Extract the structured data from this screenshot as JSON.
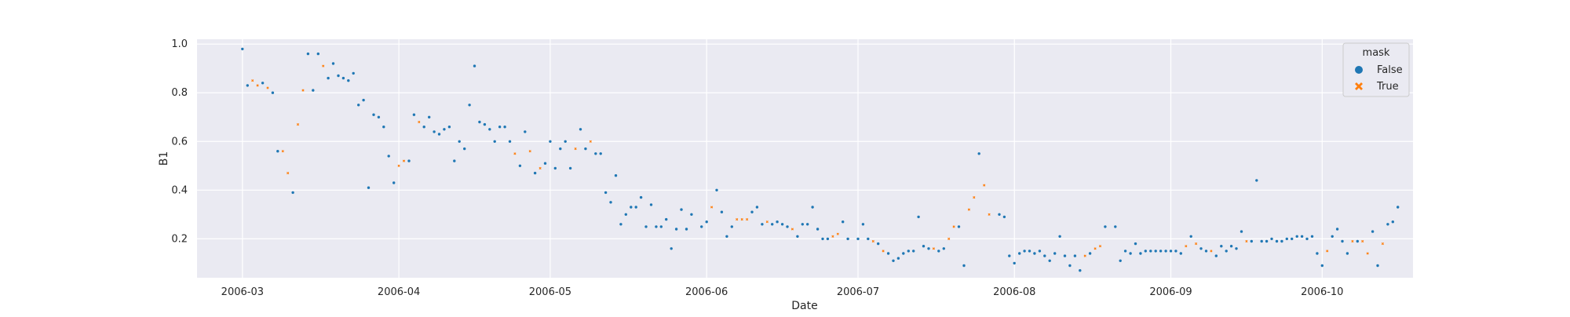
{
  "chart_data": {
    "type": "scatter",
    "xlabel": "Date",
    "ylabel": "B1",
    "x_ticks": [
      "2006-03",
      "2006-04",
      "2006-05",
      "2006-06",
      "2006-07",
      "2006-08",
      "2006-09",
      "2006-10"
    ],
    "y_ticks": [
      "0.2",
      "0.4",
      "0.6",
      "0.8",
      "1.0"
    ],
    "xlim": [
      "2006-02-20",
      "2006-10-19"
    ],
    "ylim": [
      0.04,
      1.02
    ],
    "grid": true,
    "legend": {
      "title": "mask",
      "placement": "top-right"
    },
    "series": [
      {
        "name": "False",
        "marker": "circle",
        "color": "#1f77b4",
        "points": [
          [
            "2006-03-01",
            0.98
          ],
          [
            "2006-03-02",
            0.83
          ],
          [
            "2006-03-05",
            0.84
          ],
          [
            "2006-03-07",
            0.8
          ],
          [
            "2006-03-08",
            0.56
          ],
          [
            "2006-03-11",
            0.39
          ],
          [
            "2006-03-14",
            0.96
          ],
          [
            "2006-03-15",
            0.81
          ],
          [
            "2006-03-16",
            0.96
          ],
          [
            "2006-03-18",
            0.86
          ],
          [
            "2006-03-19",
            0.92
          ],
          [
            "2006-03-20",
            0.87
          ],
          [
            "2006-03-21",
            0.86
          ],
          [
            "2006-03-22",
            0.85
          ],
          [
            "2006-03-23",
            0.88
          ],
          [
            "2006-03-24",
            0.75
          ],
          [
            "2006-03-25",
            0.77
          ],
          [
            "2006-03-26",
            0.41
          ],
          [
            "2006-03-27",
            0.71
          ],
          [
            "2006-03-28",
            0.7
          ],
          [
            "2006-03-29",
            0.66
          ],
          [
            "2006-03-30",
            0.54
          ],
          [
            "2006-03-31",
            0.43
          ],
          [
            "2006-04-03",
            0.52
          ],
          [
            "2006-04-04",
            0.71
          ],
          [
            "2006-04-06",
            0.66
          ],
          [
            "2006-04-07",
            0.7
          ],
          [
            "2006-04-08",
            0.64
          ],
          [
            "2006-04-09",
            0.63
          ],
          [
            "2006-04-10",
            0.65
          ],
          [
            "2006-04-11",
            0.66
          ],
          [
            "2006-04-12",
            0.52
          ],
          [
            "2006-04-13",
            0.6
          ],
          [
            "2006-04-14",
            0.57
          ],
          [
            "2006-04-15",
            0.75
          ],
          [
            "2006-04-16",
            0.91
          ],
          [
            "2006-04-17",
            0.68
          ],
          [
            "2006-04-18",
            0.67
          ],
          [
            "2006-04-19",
            0.65
          ],
          [
            "2006-04-20",
            0.6
          ],
          [
            "2006-04-21",
            0.66
          ],
          [
            "2006-04-22",
            0.66
          ],
          [
            "2006-04-23",
            0.6
          ],
          [
            "2006-04-25",
            0.5
          ],
          [
            "2006-04-26",
            0.64
          ],
          [
            "2006-04-28",
            0.47
          ],
          [
            "2006-04-30",
            0.51
          ],
          [
            "2006-05-01",
            0.6
          ],
          [
            "2006-05-02",
            0.49
          ],
          [
            "2006-05-03",
            0.57
          ],
          [
            "2006-05-04",
            0.6
          ],
          [
            "2006-05-05",
            0.49
          ],
          [
            "2006-05-07",
            0.65
          ],
          [
            "2006-05-08",
            0.57
          ],
          [
            "2006-05-10",
            0.55
          ],
          [
            "2006-05-11",
            0.55
          ],
          [
            "2006-05-12",
            0.39
          ],
          [
            "2006-05-13",
            0.35
          ],
          [
            "2006-05-14",
            0.46
          ],
          [
            "2006-05-15",
            0.26
          ],
          [
            "2006-05-16",
            0.3
          ],
          [
            "2006-05-17",
            0.33
          ],
          [
            "2006-05-18",
            0.33
          ],
          [
            "2006-05-19",
            0.37
          ],
          [
            "2006-05-20",
            0.25
          ],
          [
            "2006-05-21",
            0.34
          ],
          [
            "2006-05-22",
            0.25
          ],
          [
            "2006-05-23",
            0.25
          ],
          [
            "2006-05-24",
            0.28
          ],
          [
            "2006-05-25",
            0.16
          ],
          [
            "2006-05-26",
            0.24
          ],
          [
            "2006-05-27",
            0.32
          ],
          [
            "2006-05-28",
            0.24
          ],
          [
            "2006-05-29",
            0.3
          ],
          [
            "2006-05-31",
            0.25
          ],
          [
            "2006-06-01",
            0.27
          ],
          [
            "2006-06-03",
            0.4
          ],
          [
            "2006-06-04",
            0.31
          ],
          [
            "2006-06-05",
            0.21
          ],
          [
            "2006-06-06",
            0.25
          ],
          [
            "2006-06-10",
            0.31
          ],
          [
            "2006-06-11",
            0.33
          ],
          [
            "2006-06-12",
            0.26
          ],
          [
            "2006-06-14",
            0.26
          ],
          [
            "2006-06-15",
            0.27
          ],
          [
            "2006-06-16",
            0.26
          ],
          [
            "2006-06-17",
            0.25
          ],
          [
            "2006-06-19",
            0.21
          ],
          [
            "2006-06-20",
            0.26
          ],
          [
            "2006-06-21",
            0.26
          ],
          [
            "2006-06-22",
            0.33
          ],
          [
            "2006-06-23",
            0.24
          ],
          [
            "2006-06-24",
            0.2
          ],
          [
            "2006-06-25",
            0.2
          ],
          [
            "2006-06-28",
            0.27
          ],
          [
            "2006-06-29",
            0.2
          ],
          [
            "2006-07-01",
            0.2
          ],
          [
            "2006-07-02",
            0.26
          ],
          [
            "2006-07-03",
            0.2
          ],
          [
            "2006-07-05",
            0.18
          ],
          [
            "2006-07-07",
            0.14
          ],
          [
            "2006-07-08",
            0.11
          ],
          [
            "2006-07-09",
            0.12
          ],
          [
            "2006-07-10",
            0.14
          ],
          [
            "2006-07-11",
            0.15
          ],
          [
            "2006-07-12",
            0.15
          ],
          [
            "2006-07-13",
            0.29
          ],
          [
            "2006-07-14",
            0.17
          ],
          [
            "2006-07-15",
            0.16
          ],
          [
            "2006-07-17",
            0.15
          ],
          [
            "2006-07-18",
            0.16
          ],
          [
            "2006-07-21",
            0.25
          ],
          [
            "2006-07-22",
            0.09
          ],
          [
            "2006-07-25",
            0.55
          ],
          [
            "2006-07-29",
            0.3
          ],
          [
            "2006-07-30",
            0.29
          ],
          [
            "2006-07-31",
            0.13
          ],
          [
            "2006-08-01",
            0.1
          ],
          [
            "2006-08-02",
            0.14
          ],
          [
            "2006-08-03",
            0.15
          ],
          [
            "2006-08-04",
            0.15
          ],
          [
            "2006-08-05",
            0.14
          ],
          [
            "2006-08-06",
            0.15
          ],
          [
            "2006-08-07",
            0.13
          ],
          [
            "2006-08-08",
            0.11
          ],
          [
            "2006-08-09",
            0.14
          ],
          [
            "2006-08-10",
            0.21
          ],
          [
            "2006-08-11",
            0.13
          ],
          [
            "2006-08-12",
            0.09
          ],
          [
            "2006-08-13",
            0.13
          ],
          [
            "2006-08-14",
            0.07
          ],
          [
            "2006-08-16",
            0.14
          ],
          [
            "2006-08-19",
            0.25
          ],
          [
            "2006-08-21",
            0.25
          ],
          [
            "2006-08-22",
            0.11
          ],
          [
            "2006-08-23",
            0.15
          ],
          [
            "2006-08-24",
            0.14
          ],
          [
            "2006-08-25",
            0.18
          ],
          [
            "2006-08-26",
            0.14
          ],
          [
            "2006-08-27",
            0.15
          ],
          [
            "2006-08-28",
            0.15
          ],
          [
            "2006-08-29",
            0.15
          ],
          [
            "2006-08-30",
            0.15
          ],
          [
            "2006-08-31",
            0.15
          ],
          [
            "2006-09-01",
            0.15
          ],
          [
            "2006-09-02",
            0.15
          ],
          [
            "2006-09-03",
            0.14
          ],
          [
            "2006-09-05",
            0.21
          ],
          [
            "2006-09-07",
            0.16
          ],
          [
            "2006-09-08",
            0.15
          ],
          [
            "2006-09-10",
            0.13
          ],
          [
            "2006-09-11",
            0.17
          ],
          [
            "2006-09-12",
            0.15
          ],
          [
            "2006-09-13",
            0.17
          ],
          [
            "2006-09-14",
            0.16
          ],
          [
            "2006-09-15",
            0.23
          ],
          [
            "2006-09-17",
            0.19
          ],
          [
            "2006-09-18",
            0.44
          ],
          [
            "2006-09-19",
            0.19
          ],
          [
            "2006-09-20",
            0.19
          ],
          [
            "2006-09-21",
            0.2
          ],
          [
            "2006-09-22",
            0.19
          ],
          [
            "2006-09-23",
            0.19
          ],
          [
            "2006-09-24",
            0.2
          ],
          [
            "2006-09-25",
            0.2
          ],
          [
            "2006-09-26",
            0.21
          ],
          [
            "2006-09-27",
            0.21
          ],
          [
            "2006-09-28",
            0.2
          ],
          [
            "2006-09-29",
            0.21
          ],
          [
            "2006-09-30",
            0.14
          ],
          [
            "2006-10-01",
            0.09
          ],
          [
            "2006-10-03",
            0.21
          ],
          [
            "2006-10-04",
            0.24
          ],
          [
            "2006-10-05",
            0.19
          ],
          [
            "2006-10-06",
            0.14
          ],
          [
            "2006-10-08",
            0.19
          ],
          [
            "2006-10-11",
            0.23
          ],
          [
            "2006-10-12",
            0.09
          ],
          [
            "2006-10-14",
            0.26
          ],
          [
            "2006-10-15",
            0.27
          ],
          [
            "2006-10-16",
            0.33
          ]
        ]
      },
      {
        "name": "True",
        "marker": "x",
        "color": "#ff7f0e",
        "points": [
          [
            "2006-03-03",
            0.85
          ],
          [
            "2006-03-04",
            0.83
          ],
          [
            "2006-03-06",
            0.82
          ],
          [
            "2006-03-09",
            0.56
          ],
          [
            "2006-03-10",
            0.47
          ],
          [
            "2006-03-12",
            0.67
          ],
          [
            "2006-03-13",
            0.81
          ],
          [
            "2006-03-17",
            0.91
          ],
          [
            "2006-04-01",
            0.5
          ],
          [
            "2006-04-02",
            0.52
          ],
          [
            "2006-04-05",
            0.68
          ],
          [
            "2006-04-24",
            0.55
          ],
          [
            "2006-04-27",
            0.56
          ],
          [
            "2006-04-29",
            0.49
          ],
          [
            "2006-05-06",
            0.57
          ],
          [
            "2006-05-09",
            0.6
          ],
          [
            "2006-06-02",
            0.33
          ],
          [
            "2006-06-07",
            0.28
          ],
          [
            "2006-06-08",
            0.28
          ],
          [
            "2006-06-09",
            0.28
          ],
          [
            "2006-06-13",
            0.27
          ],
          [
            "2006-06-18",
            0.24
          ],
          [
            "2006-06-26",
            0.21
          ],
          [
            "2006-06-27",
            0.22
          ],
          [
            "2006-07-04",
            0.19
          ],
          [
            "2006-07-06",
            0.15
          ],
          [
            "2006-07-16",
            0.16
          ],
          [
            "2006-07-19",
            0.2
          ],
          [
            "2006-07-20",
            0.25
          ],
          [
            "2006-07-23",
            0.32
          ],
          [
            "2006-07-24",
            0.37
          ],
          [
            "2006-07-26",
            0.42
          ],
          [
            "2006-07-27",
            0.3
          ],
          [
            "2006-08-15",
            0.13
          ],
          [
            "2006-08-17",
            0.16
          ],
          [
            "2006-08-18",
            0.17
          ],
          [
            "2006-09-04",
            0.17
          ],
          [
            "2006-09-06",
            0.18
          ],
          [
            "2006-09-09",
            0.15
          ],
          [
            "2006-09-16",
            0.19
          ],
          [
            "2006-10-02",
            0.15
          ],
          [
            "2006-10-07",
            0.19
          ],
          [
            "2006-10-09",
            0.19
          ],
          [
            "2006-10-10",
            0.14
          ],
          [
            "2006-10-13",
            0.18
          ]
        ]
      }
    ]
  }
}
